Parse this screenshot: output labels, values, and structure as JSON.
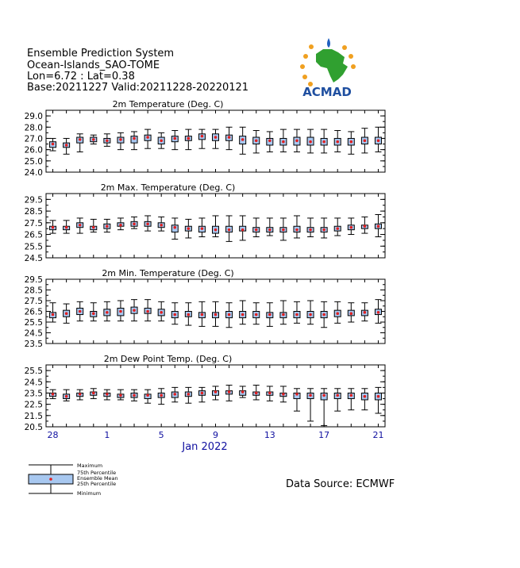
{
  "header": {
    "line1": "Ensemble Prediction System",
    "line2": "Ocean-Islands_SAO-TOME",
    "line3": "Lon=6.72 : Lat=0.38",
    "line4": "Base:20211227 Valid:20211228-20220121"
  },
  "logo": {
    "text": "ACMAD"
  },
  "source": "Data Source: ECMWF",
  "legend": {
    "max": "Maximum",
    "p75": "75th Percentile",
    "mean": "Ensemble Mean",
    "p25": "25th Percentile",
    "min": "Minimum"
  },
  "colors": {
    "box_fill": "#a8c8f0",
    "mean_dot": "#e02020",
    "x_axis_text": "#1010a0"
  },
  "x_axis": {
    "month_label": "Jan 2022",
    "tick_labels": [
      {
        "index": 0,
        "label": "28"
      },
      {
        "index": 4,
        "label": "1"
      },
      {
        "index": 8,
        "label": "5"
      },
      {
        "index": 12,
        "label": "9"
      },
      {
        "index": 16,
        "label": "13"
      },
      {
        "index": 20,
        "label": "17"
      },
      {
        "index": 24,
        "label": "21"
      }
    ]
  },
  "chart_data": [
    {
      "type": "boxplot",
      "title": "2m Temperature (Deg. C)",
      "ylim": [
        24.0,
        29.5
      ],
      "yticks": [
        "24.0",
        "25.0",
        "26.0",
        "27.0",
        "28.0",
        "29.0"
      ],
      "ytick_values": [
        24.0,
        25.0,
        26.0,
        27.0,
        28.0,
        29.0
      ],
      "series": {
        "min": [
          25.9,
          25.6,
          25.8,
          26.5,
          26.3,
          26.0,
          26.0,
          26.1,
          26.1,
          26.0,
          26.0,
          26.1,
          26.1,
          26.0,
          25.6,
          25.7,
          25.8,
          25.8,
          25.8,
          25.7,
          25.7,
          25.8,
          25.6,
          25.7,
          25.8
        ],
        "p25": [
          26.2,
          26.2,
          26.6,
          26.7,
          26.6,
          26.6,
          26.6,
          26.8,
          26.5,
          26.7,
          26.8,
          26.9,
          26.8,
          26.8,
          26.5,
          26.5,
          26.4,
          26.4,
          26.4,
          26.4,
          26.4,
          26.4,
          26.4,
          26.5,
          26.5
        ],
        "mean": [
          26.5,
          26.4,
          26.9,
          26.9,
          26.8,
          26.9,
          27.0,
          27.1,
          26.8,
          27.0,
          27.0,
          27.2,
          27.1,
          27.1,
          26.9,
          26.8,
          26.8,
          26.7,
          26.8,
          26.7,
          26.7,
          26.7,
          26.7,
          26.8,
          26.8
        ],
        "p75": [
          26.7,
          26.6,
          27.1,
          27.1,
          27.0,
          27.1,
          27.2,
          27.3,
          27.1,
          27.2,
          27.2,
          27.4,
          27.4,
          27.3,
          27.2,
          27.1,
          27.0,
          27.0,
          27.1,
          27.1,
          27.0,
          27.0,
          27.0,
          27.1,
          27.1
        ],
        "max": [
          27.0,
          27.0,
          27.4,
          27.3,
          27.4,
          27.5,
          27.6,
          27.8,
          27.5,
          27.7,
          27.8,
          27.8,
          27.8,
          28.0,
          28.0,
          27.7,
          27.6,
          27.8,
          27.8,
          27.8,
          27.8,
          27.7,
          27.6,
          27.9,
          28.0
        ]
      }
    },
    {
      "type": "boxplot",
      "title": "2m Max. Temperature (Deg. C)",
      "ylim": [
        24.5,
        30.0
      ],
      "yticks": [
        "24.5",
        "25.5",
        "26.5",
        "27.5",
        "28.5",
        "29.5"
      ],
      "ytick_values": [
        24.5,
        25.5,
        26.5,
        27.5,
        28.5,
        29.5
      ],
      "series": {
        "min": [
          26.6,
          26.6,
          26.6,
          26.7,
          26.7,
          26.9,
          27.0,
          26.8,
          26.8,
          26.1,
          26.2,
          26.3,
          26.3,
          25.9,
          26.0,
          26.3,
          26.4,
          26.0,
          26.2,
          26.3,
          26.2,
          26.4,
          26.5,
          26.6,
          26.3
        ],
        "p25": [
          26.9,
          26.9,
          27.1,
          26.9,
          27.0,
          27.2,
          27.2,
          27.2,
          27.1,
          26.7,
          26.8,
          26.7,
          26.6,
          26.7,
          26.8,
          26.7,
          26.7,
          26.7,
          26.7,
          26.7,
          26.7,
          26.8,
          26.9,
          27.0,
          27.0
        ],
        "mean": [
          27.1,
          27.1,
          27.3,
          27.1,
          27.2,
          27.3,
          27.4,
          27.4,
          27.3,
          27.1,
          27.0,
          27.0,
          26.9,
          26.9,
          26.9,
          26.9,
          26.9,
          26.9,
          26.9,
          26.9,
          26.9,
          27.0,
          27.1,
          27.2,
          27.2
        ],
        "p75": [
          27.2,
          27.2,
          27.5,
          27.2,
          27.4,
          27.5,
          27.6,
          27.6,
          27.5,
          27.3,
          27.2,
          27.2,
          27.2,
          27.2,
          27.2,
          27.1,
          27.1,
          27.1,
          27.2,
          27.1,
          27.1,
          27.2,
          27.3,
          27.3,
          27.4
        ],
        "max": [
          27.7,
          27.7,
          27.9,
          27.8,
          27.8,
          27.9,
          28.0,
          28.1,
          28.0,
          27.9,
          27.8,
          27.9,
          28.1,
          28.1,
          28.1,
          27.9,
          27.9,
          27.9,
          28.1,
          27.9,
          27.9,
          27.9,
          27.9,
          28.0,
          28.2
        ]
      }
    },
    {
      "type": "boxplot",
      "title": "2m Min. Temperature (Deg. C)",
      "ylim": [
        23.5,
        29.5
      ],
      "yticks": [
        "23.5",
        "24.5",
        "25.5",
        "26.5",
        "27.5",
        "28.5",
        "29.5"
      ],
      "ytick_values": [
        23.5,
        24.5,
        25.5,
        26.5,
        27.5,
        28.5,
        29.5
      ],
      "series": {
        "min": [
          25.5,
          25.4,
          25.6,
          25.6,
          25.6,
          25.6,
          25.6,
          25.6,
          25.6,
          25.3,
          25.2,
          25.1,
          25.1,
          25.0,
          25.3,
          25.3,
          25.1,
          25.3,
          25.4,
          25.3,
          25.0,
          25.4,
          25.5,
          25.6,
          25.4
        ],
        "p25": [
          25.9,
          26.0,
          26.2,
          26.0,
          26.1,
          26.1,
          26.3,
          26.3,
          26.1,
          25.9,
          26.0,
          25.9,
          25.9,
          25.9,
          25.9,
          25.9,
          25.9,
          25.9,
          25.9,
          25.9,
          25.9,
          26.0,
          26.1,
          26.1,
          26.2
        ],
        "mean": [
          26.2,
          26.3,
          26.5,
          26.3,
          26.4,
          26.5,
          26.6,
          26.5,
          26.4,
          26.2,
          26.2,
          26.2,
          26.2,
          26.2,
          26.2,
          26.2,
          26.2,
          26.2,
          26.2,
          26.2,
          26.2,
          26.3,
          26.3,
          26.4,
          26.4
        ],
        "p75": [
          26.4,
          26.6,
          26.8,
          26.5,
          26.7,
          26.8,
          26.9,
          26.8,
          26.7,
          26.5,
          26.5,
          26.4,
          26.4,
          26.5,
          26.5,
          26.5,
          26.4,
          26.4,
          26.5,
          26.5,
          26.5,
          26.6,
          26.6,
          26.6,
          26.7
        ],
        "max": [
          27.3,
          27.2,
          27.4,
          27.3,
          27.4,
          27.5,
          27.6,
          27.6,
          27.4,
          27.3,
          27.3,
          27.4,
          27.4,
          27.3,
          27.5,
          27.3,
          27.3,
          27.5,
          27.4,
          27.5,
          27.4,
          27.4,
          27.3,
          27.3,
          27.6
        ]
      }
    },
    {
      "type": "boxplot",
      "title": "2m Dew Point Temp. (Deg. C)",
      "ylim": [
        20.5,
        26.0
      ],
      "yticks": [
        "20.5",
        "21.5",
        "22.5",
        "23.5",
        "24.5",
        "25.5"
      ],
      "ytick_values": [
        20.5,
        21.5,
        22.5,
        23.5,
        24.5,
        25.5
      ],
      "series": {
        "min": [
          23.0,
          22.8,
          22.9,
          23.0,
          22.9,
          22.9,
          22.8,
          22.6,
          22.5,
          22.7,
          22.6,
          22.7,
          22.9,
          22.8,
          23.1,
          22.9,
          22.8,
          22.7,
          21.9,
          21.0,
          20.6,
          21.9,
          22.0,
          22.0,
          21.7
        ],
        "p25": [
          23.2,
          23.0,
          23.2,
          23.3,
          23.2,
          23.1,
          23.1,
          23.0,
          23.1,
          23.1,
          23.2,
          23.3,
          23.3,
          23.4,
          23.3,
          23.3,
          23.3,
          23.2,
          23.0,
          23.0,
          22.9,
          23.0,
          23.0,
          22.9,
          22.9
        ],
        "mean": [
          23.4,
          23.2,
          23.4,
          23.5,
          23.4,
          23.3,
          23.3,
          23.3,
          23.3,
          23.4,
          23.4,
          23.5,
          23.6,
          23.6,
          23.6,
          23.5,
          23.5,
          23.4,
          23.4,
          23.3,
          23.3,
          23.3,
          23.3,
          23.2,
          23.2
        ],
        "p75": [
          23.5,
          23.4,
          23.5,
          23.6,
          23.5,
          23.4,
          23.5,
          23.4,
          23.5,
          23.6,
          23.6,
          23.7,
          23.7,
          23.7,
          23.7,
          23.6,
          23.6,
          23.5,
          23.5,
          23.5,
          23.5,
          23.5,
          23.5,
          23.5,
          23.5
        ],
        "max": [
          23.8,
          23.8,
          23.8,
          23.9,
          23.8,
          23.8,
          23.8,
          23.8,
          23.9,
          24.0,
          24.0,
          24.0,
          24.1,
          24.2,
          24.1,
          24.2,
          24.1,
          24.1,
          23.9,
          23.9,
          23.9,
          23.9,
          23.9,
          23.9,
          24.0
        ]
      }
    }
  ]
}
